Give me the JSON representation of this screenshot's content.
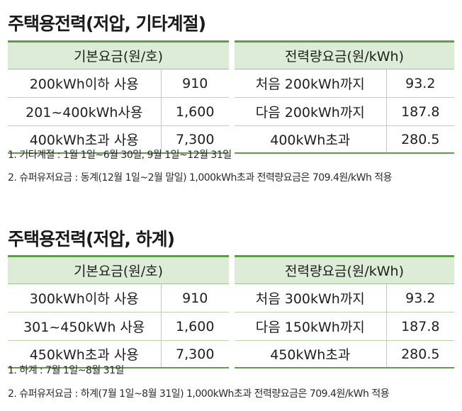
{
  "sections": [
    {
      "title": "주택용전력(저압, 기타계절)",
      "headers": {
        "basic": "기본요금(원/호)",
        "energy": "전력량요금(원/kWh)"
      },
      "rows": [
        {
          "basic_label": "200kWh이하 사용",
          "basic_value": "910",
          "energy_label": "처음 200kWh까지",
          "energy_value": "93.2"
        },
        {
          "basic_label": "201~400kWh사용",
          "basic_value": "1,600",
          "energy_label": "다음 200kWh까지",
          "energy_value": "187.8"
        },
        {
          "basic_label": "400kWh초과 사용",
          "basic_value": "7,300",
          "energy_label": "400kWh초과",
          "energy_value": "280.5"
        }
      ],
      "notes": [
        "1. 기타계절 : 1월 1일~6월 30일, 9월 1일~12월 31일",
        "2. 슈퍼유저요금 : 동계(12월 1일~2월 말일) 1,000kWh초과 전력량요금은 709.4원/kWh 적용"
      ]
    },
    {
      "title": "주택용전력(저압, 하계)",
      "headers": {
        "basic": "기본요금(원/호)",
        "energy": "전력량요금(원/kWh)"
      },
      "rows": [
        {
          "basic_label": "300kWh이하 사용",
          "basic_value": "910",
          "energy_label": "처음 300kWh까지",
          "energy_value": "93.2"
        },
        {
          "basic_label": "301~450kWh 사용",
          "basic_value": "1,600",
          "energy_label": "다음 150kWh까지",
          "energy_value": "187.8"
        },
        {
          "basic_label": "450kWh초과 사용",
          "basic_value": "7,300",
          "energy_label": "450kWh초과",
          "energy_value": "280.5"
        }
      ],
      "notes": [
        "1. 하계 : 7월 1일~8월 31일",
        "2. 슈퍼유저요금 : 하계(7월 1일~8월 31일) 1,000kWh초과 전력량요금은 709.4원/kWh 적용"
      ]
    }
  ]
}
